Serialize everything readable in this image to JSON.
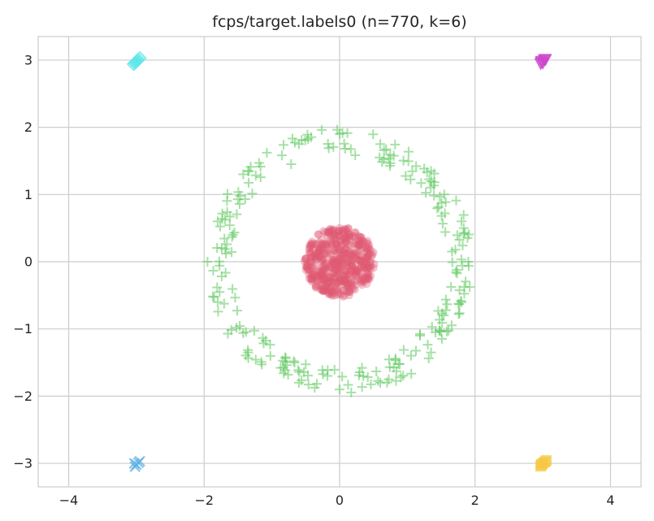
{
  "chart_data": {
    "type": "scatter",
    "title": "fcps/target.labels0 (n=770, k=6)",
    "xlabel": "",
    "ylabel": "",
    "xlim": [
      -4.45,
      4.45
    ],
    "ylim": [
      -3.35,
      3.35
    ],
    "xticks": [
      -4,
      -2,
      0,
      2,
      4
    ],
    "yticks": [
      -3,
      -2,
      -1,
      0,
      1,
      2,
      3
    ],
    "xtick_labels": [
      "−4",
      "−2",
      "0",
      "2",
      "4"
    ],
    "ytick_labels": [
      "−3",
      "−2",
      "−1",
      "0",
      "1",
      "2",
      "3"
    ],
    "grid": true,
    "legend": "none",
    "series": [
      {
        "marker": "disc",
        "color": "#e05a72",
        "count": 500,
        "description": "dense disc centered at (0, 0), radius about 0.55",
        "points": [
          [
            0.0,
            0.0
          ],
          [
            0.3,
            0.3
          ],
          [
            -0.3,
            0.2
          ],
          [
            0.2,
            -0.4
          ],
          [
            -0.4,
            -0.2
          ],
          [
            0.45,
            0.0
          ],
          [
            0.0,
            0.5
          ],
          [
            -0.5,
            0.05
          ],
          [
            0.05,
            -0.52
          ]
        ]
      },
      {
        "marker": "plus",
        "color": "#5cc95c",
        "count": 250,
        "description": "ring centered at (0, 0), radius about 1.6 to 2.0",
        "points": [
          [
            0.0,
            1.9
          ],
          [
            1.35,
            1.35
          ],
          [
            1.9,
            0.0
          ],
          [
            1.35,
            -1.35
          ],
          [
            0.0,
            -1.9
          ],
          [
            -1.35,
            -1.35
          ],
          [
            -1.95,
            0.0
          ],
          [
            -1.35,
            1.35
          ],
          [
            0.6,
            1.75
          ],
          [
            -0.6,
            1.75
          ],
          [
            1.8,
            0.6
          ],
          [
            1.8,
            -0.6
          ],
          [
            0.6,
            -1.8
          ],
          [
            -0.6,
            -1.8
          ],
          [
            -1.8,
            -0.6
          ],
          [
            -1.8,
            0.6
          ]
        ]
      },
      {
        "marker": "diamond",
        "color": "#5ce6ea",
        "count": 5,
        "points": [
          [
            -3.02,
            2.96
          ],
          [
            -2.98,
            3.0
          ],
          [
            -3.0,
            2.98
          ],
          [
            -2.95,
            3.03
          ],
          [
            -3.04,
            2.94
          ]
        ]
      },
      {
        "marker": "triangle-down",
        "color": "#cc44cc",
        "count": 5,
        "points": [
          [
            2.98,
            2.98
          ],
          [
            3.02,
            3.0
          ],
          [
            3.0,
            2.96
          ],
          [
            3.04,
            3.01
          ],
          [
            2.97,
            2.95
          ]
        ]
      },
      {
        "marker": "x",
        "color": "#5aaee6",
        "count": 5,
        "points": [
          [
            -3.0,
            -3.02
          ],
          [
            -2.97,
            -2.99
          ],
          [
            -3.02,
            -3.05
          ],
          [
            -2.95,
            -2.97
          ],
          [
            -3.03,
            -3.0
          ]
        ]
      },
      {
        "marker": "square",
        "color": "#f5c842",
        "count": 5,
        "points": [
          [
            2.97,
            -3.04
          ],
          [
            3.0,
            -3.0
          ],
          [
            3.03,
            -2.98
          ],
          [
            2.98,
            -3.02
          ],
          [
            3.05,
            -2.96
          ]
        ]
      }
    ]
  }
}
